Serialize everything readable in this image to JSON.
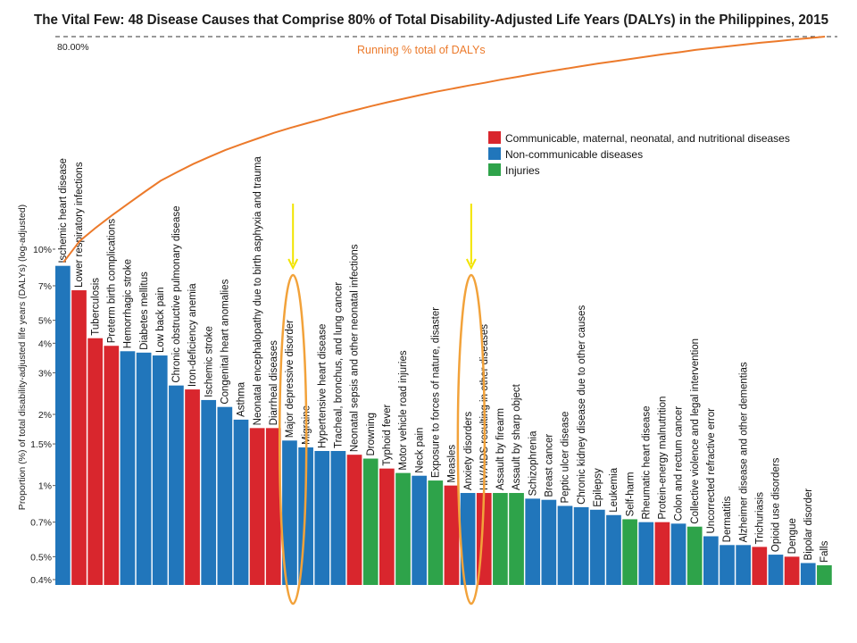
{
  "title": "The Vital Few: 48 Disease Causes that Comprise 80% of Total Disability-Adjusted Life Years (DALYs) in the Philippines, 2015",
  "reference_label": "80.00%",
  "running_label": "Running % total of DALYs",
  "colors": {
    "communicable": "#d9262d",
    "noncommunicable": "#2176bb",
    "injuries": "#2ea34a",
    "running": "#ec7a2b",
    "highlight": "#f2a23a",
    "arrow": "#f2e400"
  },
  "legend": [
    {
      "key": "communicable",
      "label": "Communicable, maternal, neonatal, and nutritional diseases"
    },
    {
      "key": "noncommunicable",
      "label": "Non-communicable diseases"
    },
    {
      "key": "injuries",
      "label": "Injuries"
    }
  ],
  "highlighted": [
    "Major depressive disorder",
    "Anxiety disorders"
  ],
  "chart_data": {
    "type": "bar",
    "title": "The Vital Few: 48 Disease Causes that Comprise 80% of Total Disability-Adjusted Life Years (DALYs) in the Philippines, 2015",
    "ylabel": "Proportion (%) of total disability-adjusted life years (DALYs) (log-adjusted)",
    "yscale": "log",
    "ylim": [
      0.4,
      10
    ],
    "yticks": [
      {
        "v": 10,
        "label": "10%"
      },
      {
        "v": 7,
        "label": "7%"
      },
      {
        "v": 5,
        "label": "5%"
      },
      {
        "v": 4,
        "label": "4%"
      },
      {
        "v": 3,
        "label": "3%"
      },
      {
        "v": 2,
        "label": "2%"
      },
      {
        "v": 1.5,
        "label": "1.5%"
      },
      {
        "v": 1,
        "label": "1%"
      },
      {
        "v": 0.7,
        "label": "0.7%"
      },
      {
        "v": 0.5,
        "label": "0.5%"
      },
      {
        "v": 0.4,
        "label": "0.4%"
      }
    ],
    "categories": [
      {
        "name": "Ischemic heart disease",
        "value": 8.5,
        "group": "noncommunicable"
      },
      {
        "name": "Lower respiratory infections",
        "value": 6.7,
        "group": "communicable"
      },
      {
        "name": "Tuberculosis",
        "value": 4.2,
        "group": "communicable"
      },
      {
        "name": "Preterm birth complications",
        "value": 3.9,
        "group": "communicable"
      },
      {
        "name": "Hemorrhagic stroke",
        "value": 3.7,
        "group": "noncommunicable"
      },
      {
        "name": "Diabetes mellitus",
        "value": 3.65,
        "group": "noncommunicable"
      },
      {
        "name": "Low back pain",
        "value": 3.55,
        "group": "noncommunicable"
      },
      {
        "name": "Chronic obstructive pulmonary disease",
        "value": 2.65,
        "group": "noncommunicable"
      },
      {
        "name": "Iron-deficiency anemia",
        "value": 2.55,
        "group": "communicable"
      },
      {
        "name": "Ischemic stroke",
        "value": 2.3,
        "group": "noncommunicable"
      },
      {
        "name": "Congenital heart anomalies",
        "value": 2.15,
        "group": "noncommunicable"
      },
      {
        "name": "Asthma",
        "value": 1.9,
        "group": "noncommunicable"
      },
      {
        "name": "Neonatal encephalopathy due to birth asphyxia and trauma",
        "value": 1.75,
        "group": "communicable"
      },
      {
        "name": "Diarrheal diseases",
        "value": 1.75,
        "group": "communicable"
      },
      {
        "name": "Major depressive disorder",
        "value": 1.55,
        "group": "noncommunicable"
      },
      {
        "name": "Migraine",
        "value": 1.45,
        "group": "noncommunicable"
      },
      {
        "name": "Hypertensive heart disease",
        "value": 1.4,
        "group": "noncommunicable"
      },
      {
        "name": "Tracheal, bronchus, and lung cancer",
        "value": 1.4,
        "group": "noncommunicable"
      },
      {
        "name": "Neonatal sepsis and other neonatal infections",
        "value": 1.35,
        "group": "communicable"
      },
      {
        "name": "Drowning",
        "value": 1.3,
        "group": "injuries"
      },
      {
        "name": "Typhoid fever",
        "value": 1.18,
        "group": "communicable"
      },
      {
        "name": "Motor vehicle road injuries",
        "value": 1.13,
        "group": "injuries"
      },
      {
        "name": "Neck pain",
        "value": 1.1,
        "group": "noncommunicable"
      },
      {
        "name": "Exposure to forces of nature, disaster",
        "value": 1.05,
        "group": "injuries"
      },
      {
        "name": "Measles",
        "value": 1.0,
        "group": "communicable"
      },
      {
        "name": "Anxiety disorders",
        "value": 0.93,
        "group": "noncommunicable"
      },
      {
        "name": "HIV/AIDS resulting in other diseases",
        "value": 0.93,
        "group": "communicable"
      },
      {
        "name": "Assault by firearm",
        "value": 0.93,
        "group": "injuries"
      },
      {
        "name": "Assault by sharp object",
        "value": 0.93,
        "group": "injuries"
      },
      {
        "name": "Schizophrenia",
        "value": 0.88,
        "group": "noncommunicable"
      },
      {
        "name": "Breast cancer",
        "value": 0.87,
        "group": "noncommunicable"
      },
      {
        "name": "Peptic ulcer disease",
        "value": 0.82,
        "group": "noncommunicable"
      },
      {
        "name": "Chronic kidney disease due to other causes",
        "value": 0.81,
        "group": "noncommunicable"
      },
      {
        "name": "Epilepsy",
        "value": 0.79,
        "group": "noncommunicable"
      },
      {
        "name": "Leukemia",
        "value": 0.75,
        "group": "noncommunicable"
      },
      {
        "name": "Self-harm",
        "value": 0.72,
        "group": "injuries"
      },
      {
        "name": "Rheumatic heart disease",
        "value": 0.7,
        "group": "noncommunicable"
      },
      {
        "name": "Protein-energy malnutrition",
        "value": 0.7,
        "group": "communicable"
      },
      {
        "name": "Colon and rectum cancer",
        "value": 0.69,
        "group": "noncommunicable"
      },
      {
        "name": "Collective violence and legal intervention",
        "value": 0.67,
        "group": "injuries"
      },
      {
        "name": "Uncorrected refractive error",
        "value": 0.61,
        "group": "noncommunicable"
      },
      {
        "name": "Dermatitis",
        "value": 0.56,
        "group": "noncommunicable"
      },
      {
        "name": "Alzheimer disease and other dementias",
        "value": 0.56,
        "group": "noncommunicable"
      },
      {
        "name": "Trichuriasis",
        "value": 0.55,
        "group": "communicable"
      },
      {
        "name": "Opioid use disorders",
        "value": 0.51,
        "group": "noncommunicable"
      },
      {
        "name": "Dengue",
        "value": 0.5,
        "group": "communicable"
      },
      {
        "name": "Bipolar disorder",
        "value": 0.47,
        "group": "noncommunicable"
      },
      {
        "name": "Falls",
        "value": 0.46,
        "group": "injuries"
      }
    ],
    "running_total": {
      "name": "Running % total of DALYs",
      "reference": 80,
      "description_values_pct": [
        10.5,
        18.8,
        24.0,
        28.8,
        33.4,
        37.9,
        42.3,
        45.6,
        48.8,
        51.6,
        54.3,
        56.6,
        58.8,
        61.0,
        62.9,
        64.7,
        66.4,
        68.2,
        69.8,
        71.4,
        72.9,
        74.3,
        75.7,
        77.0,
        78.2,
        79.4,
        80.5,
        81.7,
        82.8,
        83.9,
        85.0,
        86.0,
        87.0,
        88.0,
        88.9,
        89.8,
        90.7,
        91.6,
        92.4,
        93.3,
        94.0,
        94.7,
        95.4,
        96.1,
        96.7,
        97.3,
        97.9,
        98.5
      ]
    }
  }
}
